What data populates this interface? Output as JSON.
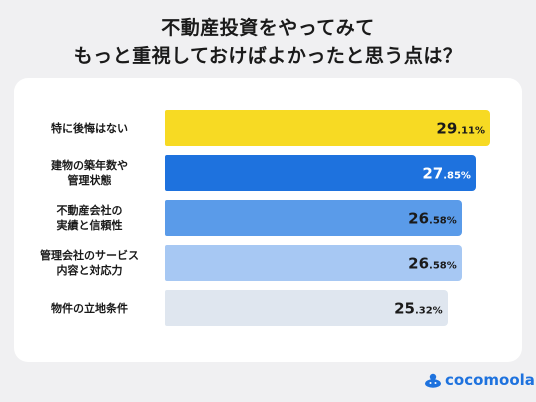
{
  "title": {
    "line1": "不動産投資をやってみて",
    "line2": "もっと重視しておけばよかったと思う点は？"
  },
  "brand": {
    "name": "cocomoola",
    "color": "#1e72de"
  },
  "chart_data": {
    "type": "bar",
    "orientation": "horizontal",
    "categories": [
      "特に後悔はない",
      "建物の築年数や\n管理状態",
      "不動産会社の\n実績と信頼性",
      "管理会社のサービス\n内容と対応力",
      "物件の立地条件"
    ],
    "values": [
      29.11,
      27.85,
      26.58,
      26.58,
      25.32
    ],
    "value_labels": [
      {
        "int": "29",
        "dec": ".11%"
      },
      {
        "int": "27",
        "dec": ".85%"
      },
      {
        "int": "26",
        "dec": ".58%"
      },
      {
        "int": "26",
        "dec": ".58%"
      },
      {
        "int": "25",
        "dec": ".32%"
      }
    ],
    "colors": [
      "#f7da23",
      "#1e72de",
      "#5a9be9",
      "#a7c8f3",
      "#dfe6ef"
    ],
    "text_colors": [
      "#1a1a1a",
      "#ffffff",
      "#1a1a1a",
      "#1a1a1a",
      "#1a1a1a"
    ],
    "unit": "%",
    "xlim": [
      0,
      29.11
    ],
    "grid": false,
    "legend": "none"
  }
}
